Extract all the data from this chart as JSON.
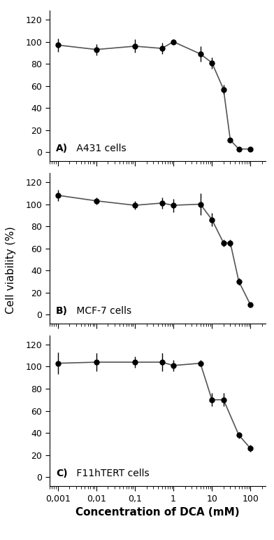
{
  "panels": [
    {
      "label_bold": "A)",
      "label_normal": " A431 cells",
      "x": [
        0.001,
        0.01,
        0.1,
        0.5,
        1,
        5,
        10,
        20,
        30,
        50,
        100
      ],
      "y": [
        97,
        93,
        96,
        94,
        100,
        89,
        81,
        57,
        11,
        3,
        3
      ],
      "yerr": [
        6,
        5,
        6,
        5,
        2,
        7,
        5,
        4,
        2,
        2,
        1
      ]
    },
    {
      "label_bold": "B)",
      "label_normal": " MCF-7 cells",
      "x": [
        0.001,
        0.01,
        0.1,
        0.5,
        1,
        5,
        10,
        20,
        30,
        50,
        100
      ],
      "y": [
        108,
        103,
        99,
        101,
        99,
        100,
        86,
        65,
        65,
        30,
        9
      ],
      "yerr": [
        5,
        3,
        4,
        5,
        6,
        10,
        6,
        3,
        3,
        3,
        2
      ]
    },
    {
      "label_bold": "C)",
      "label_normal": " F11hTERT cells",
      "x": [
        0.001,
        0.01,
        0.1,
        0.5,
        1,
        5,
        10,
        20,
        50,
        100
      ],
      "y": [
        103,
        104,
        104,
        104,
        101,
        103,
        70,
        70,
        38,
        26
      ],
      "yerr": [
        10,
        8,
        5,
        8,
        5,
        3,
        6,
        6,
        3,
        3
      ]
    }
  ],
  "xlabel": "Concentration of DCA (mM)",
  "ylabel": "Cell viability (%)",
  "ylim": [
    -8,
    128
  ],
  "yticks": [
    0,
    20,
    40,
    60,
    80,
    100,
    120
  ],
  "xticks": [
    0.001,
    0.01,
    0.1,
    1,
    10,
    100
  ],
  "xticklabels": [
    "0,001",
    "0,01",
    "0,1",
    "1",
    "10",
    "100"
  ],
  "xlim": [
    0.0006,
    250
  ],
  "line_color": "#555555",
  "marker_color": "black",
  "background": "white",
  "figsize": [
    3.92,
    7.71
  ],
  "dpi": 100
}
